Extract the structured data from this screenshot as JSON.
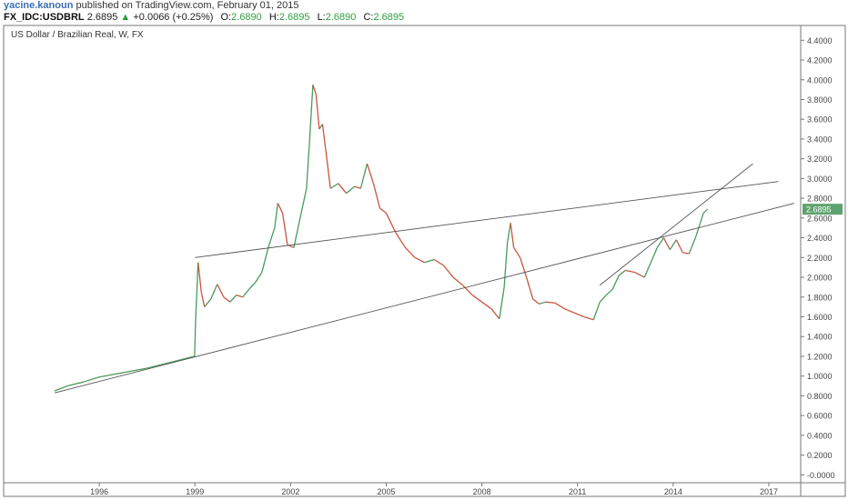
{
  "header": {
    "author": "yacine.kanoun",
    "published": "published on TradingView.com, February 01, 2015",
    "symbol": "FX_IDC:USDBRL",
    "last": "2.6895",
    "arrow": "▲",
    "change": "+0.0066 (+0.25%)",
    "o_label": "O:",
    "o_value": "2.6890",
    "h_label": "H:",
    "h_value": "2.6895",
    "l_label": "L:",
    "l_value": "2.6890",
    "c_label": "C:",
    "c_value": "2.6895"
  },
  "colors": {
    "up": "#4a9a5c",
    "down": "#c8553f",
    "trendline": "#555555",
    "price_tag": "#5ea36f",
    "frame": "#777777"
  },
  "chart_data": {
    "type": "line",
    "title": "US Dollar / Brazilian Real, W, FX",
    "last_price_label": "2.6895",
    "xlim": [
      1993.0,
      2018.0
    ],
    "ylim": [
      -0.08,
      4.55
    ],
    "x_ticks": [
      "1996",
      "1999",
      "2002",
      "2005",
      "2008",
      "2011",
      "2014",
      "2017"
    ],
    "y_ticks": [
      "4.4000",
      "4.2000",
      "4.0000",
      "3.8000",
      "3.6000",
      "3.4000",
      "3.2000",
      "3.0000",
      "2.8000",
      "2.6000",
      "2.4000",
      "2.2000",
      "2.0000",
      "1.8000",
      "1.6000",
      "1.4000",
      "1.2000",
      "1.0000",
      "0.8000",
      "0.6000",
      "0.4000",
      "0.2000",
      "-0.0000"
    ],
    "series": [
      {
        "x": [
          1994.6,
          1995.0,
          1995.5,
          1996.0,
          1996.5,
          1997.0,
          1997.5,
          1998.0,
          1998.5,
          1998.99,
          1999.02,
          1999.1,
          1999.2,
          1999.3,
          1999.5,
          1999.7,
          1999.9,
          2000.1,
          2000.3,
          2000.5,
          2000.7,
          2000.9,
          2001.1,
          2001.3,
          2001.5,
          2001.6,
          2001.75,
          2001.9,
          2002.1,
          2002.3,
          2002.5,
          2002.6,
          2002.7,
          2002.8,
          2002.9,
          2003.0,
          2003.1,
          2003.25,
          2003.5,
          2003.75,
          2004.0,
          2004.2,
          2004.4,
          2004.6,
          2004.8,
          2005.0,
          2005.3,
          2005.6,
          2005.9,
          2006.2,
          2006.5,
          2006.8,
          2007.1,
          2007.4,
          2007.7,
          2008.0,
          2008.3,
          2008.55,
          2008.7,
          2008.8,
          2008.9,
          2009.0,
          2009.2,
          2009.4,
          2009.6,
          2009.8,
          2010.0,
          2010.3,
          2010.6,
          2010.9,
          2011.2,
          2011.5,
          2011.7,
          2011.9,
          2012.1,
          2012.3,
          2012.5,
          2012.8,
          2013.1,
          2013.3,
          2013.5,
          2013.7,
          2013.9,
          2014.1,
          2014.3,
          2014.5,
          2014.7,
          2014.85,
          2014.95,
          2015.08
        ],
        "values": [
          0.85,
          0.9,
          0.94,
          0.99,
          1.02,
          1.05,
          1.08,
          1.12,
          1.16,
          1.2,
          1.55,
          2.15,
          1.85,
          1.7,
          1.78,
          1.93,
          1.8,
          1.75,
          1.82,
          1.8,
          1.88,
          1.95,
          2.05,
          2.3,
          2.5,
          2.75,
          2.65,
          2.33,
          2.3,
          2.6,
          2.9,
          3.4,
          3.95,
          3.85,
          3.5,
          3.55,
          3.3,
          2.9,
          2.95,
          2.85,
          2.92,
          2.9,
          3.15,
          2.95,
          2.7,
          2.65,
          2.45,
          2.3,
          2.2,
          2.15,
          2.18,
          2.12,
          2.0,
          1.92,
          1.82,
          1.75,
          1.68,
          1.58,
          1.9,
          2.35,
          2.55,
          2.3,
          2.2,
          2.0,
          1.78,
          1.73,
          1.75,
          1.74,
          1.68,
          1.64,
          1.6,
          1.57,
          1.75,
          1.82,
          1.88,
          2.02,
          2.07,
          2.05,
          2.0,
          2.15,
          2.3,
          2.4,
          2.28,
          2.38,
          2.25,
          2.24,
          2.4,
          2.55,
          2.65,
          2.69
        ]
      }
    ],
    "trendlines": [
      {
        "x": [
          1999.0,
          2017.3
        ],
        "y": [
          2.2,
          2.97
        ]
      },
      {
        "x": [
          1994.6,
          2017.8
        ],
        "y": [
          0.83,
          2.75
        ]
      },
      {
        "x": [
          2011.7,
          2016.5
        ],
        "y": [
          1.92,
          3.15
        ]
      }
    ]
  }
}
